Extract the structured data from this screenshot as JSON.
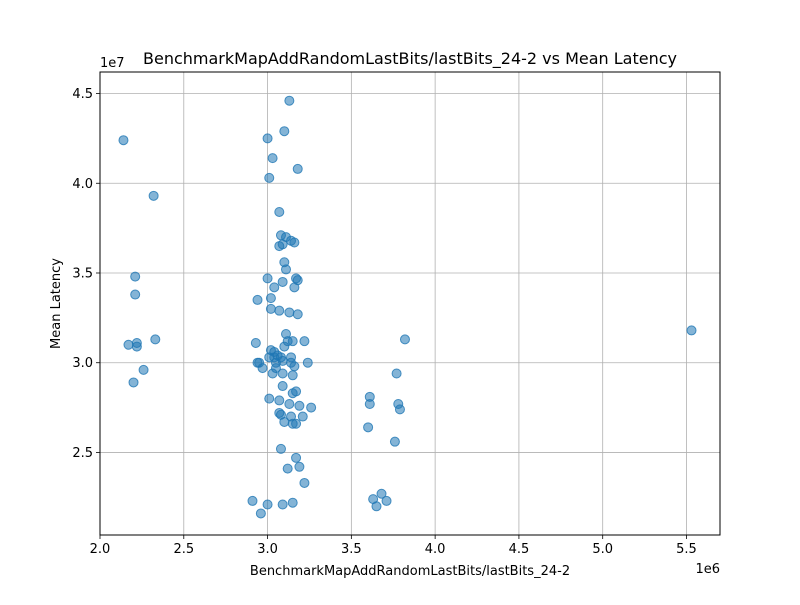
{
  "chart_data": {
    "type": "scatter",
    "title": "BenchmarkMapAddRandomLastBits/lastBits_24-2 vs Mean Latency",
    "xlabel": "BenchmarkMapAddRandomLastBits/lastBits_24-2",
    "ylabel": "Mean Latency",
    "x_offset_text": "1e6",
    "y_offset_text": "1e7",
    "xlim": [
      2.0,
      5.7
    ],
    "ylim": [
      2.04,
      4.62
    ],
    "x_ticks": [
      2.0,
      2.5,
      3.0,
      3.5,
      4.0,
      4.5,
      5.0,
      5.5
    ],
    "x_tick_labels": [
      "2.0",
      "2.5",
      "3.0",
      "3.5",
      "4.0",
      "4.5",
      "5.0",
      "5.5"
    ],
    "y_ticks": [
      2.5,
      3.0,
      3.5,
      4.0,
      4.5
    ],
    "y_tick_labels": [
      "2.5",
      "3.0",
      "3.5",
      "4.0",
      "4.5"
    ],
    "grid": true,
    "marker_color": "#1f77b4",
    "points": [
      [
        2.14,
        4.24
      ],
      [
        2.32,
        3.93
      ],
      [
        2.21,
        3.48
      ],
      [
        2.21,
        3.38
      ],
      [
        2.17,
        3.1
      ],
      [
        2.22,
        3.11
      ],
      [
        2.22,
        3.09
      ],
      [
        2.33,
        3.13
      ],
      [
        2.26,
        2.96
      ],
      [
        2.2,
        2.89
      ],
      [
        3.13,
        4.46
      ],
      [
        3.1,
        4.29
      ],
      [
        3.0,
        4.25
      ],
      [
        3.03,
        4.14
      ],
      [
        3.18,
        4.08
      ],
      [
        3.01,
        4.03
      ],
      [
        3.07,
        3.84
      ],
      [
        3.08,
        3.71
      ],
      [
        3.11,
        3.7
      ],
      [
        3.14,
        3.68
      ],
      [
        3.16,
        3.67
      ],
      [
        3.09,
        3.66
      ],
      [
        3.07,
        3.65
      ],
      [
        3.1,
        3.56
      ],
      [
        3.11,
        3.52
      ],
      [
        3.0,
        3.47
      ],
      [
        3.09,
        3.45
      ],
      [
        3.17,
        3.47
      ],
      [
        3.18,
        3.46
      ],
      [
        3.04,
        3.42
      ],
      [
        3.16,
        3.42
      ],
      [
        2.94,
        3.35
      ],
      [
        3.02,
        3.36
      ],
      [
        3.02,
        3.3
      ],
      [
        3.07,
        3.29
      ],
      [
        3.13,
        3.28
      ],
      [
        3.18,
        3.27
      ],
      [
        3.11,
        3.16
      ],
      [
        2.93,
        3.11
      ],
      [
        3.12,
        3.12
      ],
      [
        3.15,
        3.12
      ],
      [
        3.22,
        3.12
      ],
      [
        3.1,
        3.09
      ],
      [
        3.02,
        3.07
      ],
      [
        3.04,
        3.06
      ],
      [
        3.06,
        3.04
      ],
      [
        3.04,
        3.03
      ],
      [
        3.01,
        3.03
      ],
      [
        3.08,
        3.03
      ],
      [
        3.14,
        3.03
      ],
      [
        2.94,
        3.0
      ],
      [
        2.95,
        3.0
      ],
      [
        3.05,
        3.0
      ],
      [
        3.09,
        3.01
      ],
      [
        3.14,
        3.0
      ],
      [
        3.24,
        3.0
      ],
      [
        2.97,
        2.97
      ],
      [
        3.05,
        2.97
      ],
      [
        3.16,
        2.98
      ],
      [
        3.03,
        2.94
      ],
      [
        3.09,
        2.94
      ],
      [
        3.15,
        2.93
      ],
      [
        3.09,
        2.87
      ],
      [
        3.15,
        2.83
      ],
      [
        3.17,
        2.84
      ],
      [
        3.01,
        2.8
      ],
      [
        3.07,
        2.79
      ],
      [
        3.13,
        2.77
      ],
      [
        3.19,
        2.76
      ],
      [
        3.26,
        2.75
      ],
      [
        3.07,
        2.72
      ],
      [
        3.08,
        2.71
      ],
      [
        3.14,
        2.7
      ],
      [
        3.21,
        2.7
      ],
      [
        3.1,
        2.67
      ],
      [
        3.15,
        2.66
      ],
      [
        3.17,
        2.66
      ],
      [
        3.08,
        2.52
      ],
      [
        3.17,
        2.47
      ],
      [
        3.19,
        2.42
      ],
      [
        3.12,
        2.41
      ],
      [
        3.22,
        2.33
      ],
      [
        2.91,
        2.23
      ],
      [
        3.0,
        2.21
      ],
      [
        3.09,
        2.21
      ],
      [
        3.15,
        2.22
      ],
      [
        2.96,
        2.16
      ],
      [
        3.82,
        3.13
      ],
      [
        3.77,
        2.94
      ],
      [
        3.61,
        2.81
      ],
      [
        3.61,
        2.77
      ],
      [
        3.78,
        2.77
      ],
      [
        3.79,
        2.74
      ],
      [
        3.6,
        2.64
      ],
      [
        3.76,
        2.56
      ],
      [
        3.68,
        2.27
      ],
      [
        3.63,
        2.24
      ],
      [
        3.71,
        2.23
      ],
      [
        3.65,
        2.2
      ],
      [
        5.53,
        3.18
      ]
    ]
  }
}
